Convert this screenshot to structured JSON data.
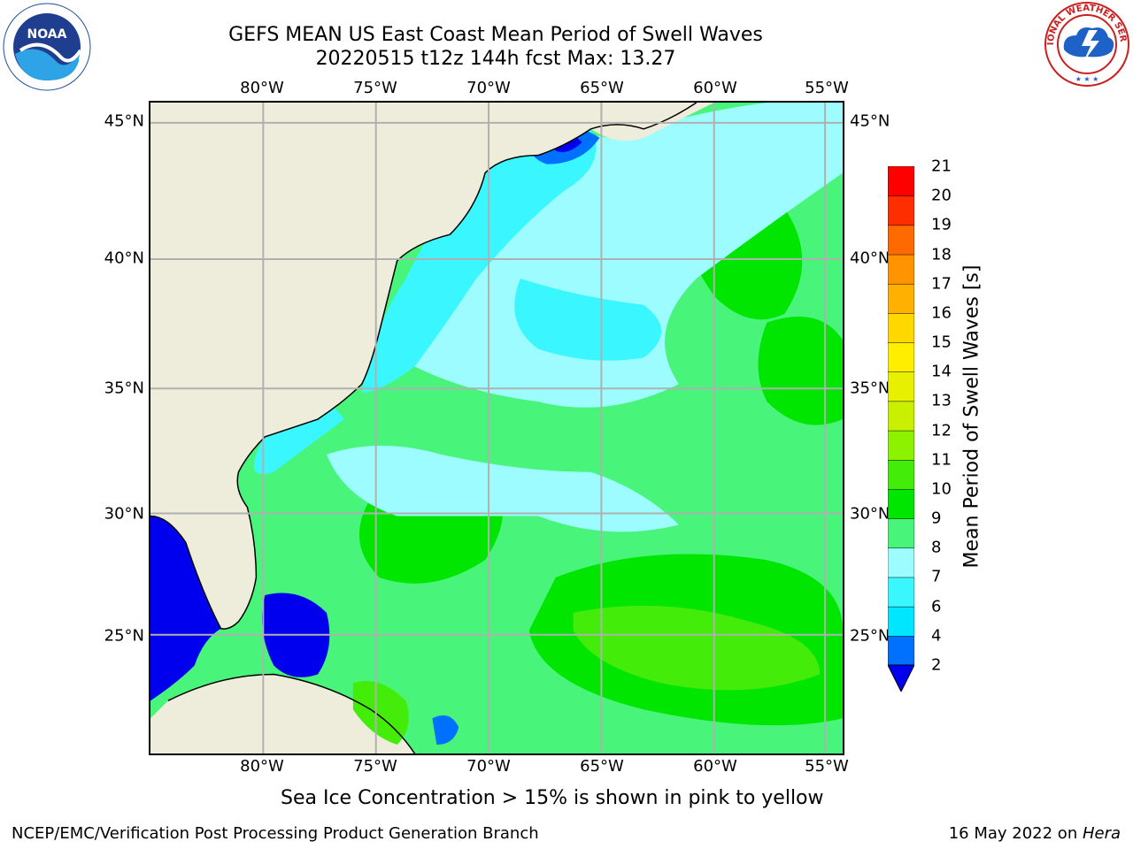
{
  "title": {
    "line1": "GEFS MEAN US East Coast Mean Period of Swell Waves",
    "line2": "20220515 t12z 144h fcst   Max: 13.27"
  },
  "map": {
    "lon_labels": [
      "80°W",
      "75°W",
      "70°W",
      "65°W",
      "60°W",
      "55°W"
    ],
    "lat_labels": [
      "45°N",
      "40°N",
      "35°N",
      "30°N",
      "25°N"
    ],
    "extent": {
      "lon_min": -85,
      "lon_max": -54.5,
      "lat_min": 20.5,
      "lat_max": 46
    },
    "gridlines": true,
    "land_color": "#eeecdb"
  },
  "colorbar": {
    "label": "Mean Period of Swell Waves [s]",
    "ticks": [
      "2",
      "4",
      "6",
      "7",
      "8",
      "9",
      "10",
      "11",
      "12",
      "13",
      "14",
      "15",
      "16",
      "17",
      "18",
      "19",
      "20",
      "21"
    ],
    "colors": [
      "#0000ee",
      "#0070ff",
      "#00e6ff",
      "#3af6ff",
      "#9cfcff",
      "#48f47a",
      "#00e600",
      "#44ec0a",
      "#8cf200",
      "#c8f000",
      "#e6f000",
      "#ffee00",
      "#ffd800",
      "#ffb000",
      "#ff9400",
      "#ff6a00",
      "#ff2e00",
      "#ff0000"
    ],
    "extend_min_color": "#0000ee"
  },
  "note": "Sea Ice Concentration > 15% is shown in pink to yellow",
  "footer": {
    "left": "NCEP/EMC/Verification Post Processing Product Generation Branch",
    "right_date": "16 May 2022 on ",
    "right_machine": "Hera"
  },
  "logos": {
    "noaa_text": "NOAA",
    "nws_text": "NATIONAL WEATHER SERVICE"
  }
}
